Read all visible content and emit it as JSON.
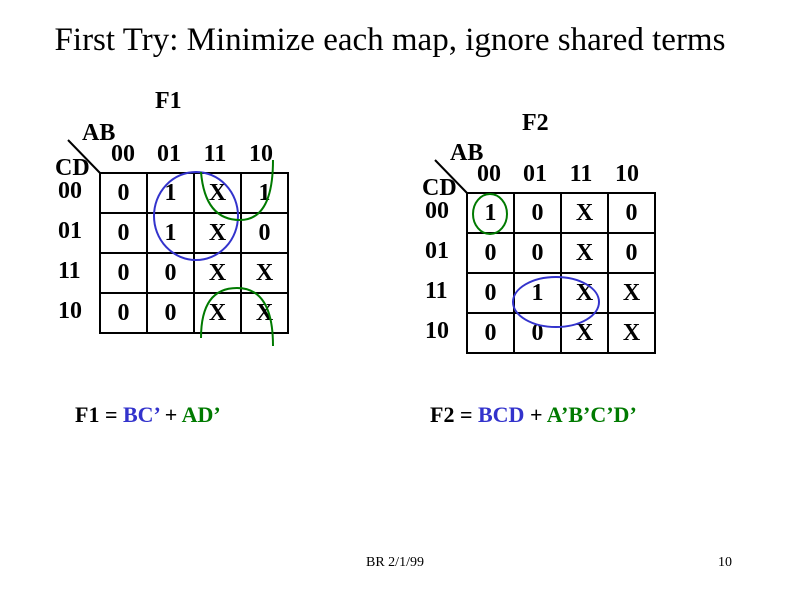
{
  "title": "First Try: Minimize each map, ignore shared terms",
  "colors": {
    "blue": "#3333cc",
    "green": "#007a00"
  },
  "col_codes": [
    "00",
    "01",
    "11",
    "10"
  ],
  "row_codes": [
    "00",
    "01",
    "11",
    "10"
  ],
  "maps": [
    {
      "name": "F1",
      "col_var": "AB",
      "row_var": "CD",
      "cells": [
        [
          "0",
          "1",
          "X",
          "1"
        ],
        [
          "0",
          "1",
          "X",
          "0"
        ],
        [
          "0",
          "0",
          "X",
          "X"
        ],
        [
          "0",
          "0",
          "X",
          "X"
        ]
      ],
      "equation": {
        "lhs": "F1 = ",
        "t1": "BC’",
        "op": " + ",
        "t2": "AD’"
      }
    },
    {
      "name": "F2",
      "col_var": "AB",
      "row_var": "CD",
      "cells": [
        [
          "1",
          "0",
          "X",
          "0"
        ],
        [
          "0",
          "0",
          "X",
          "0"
        ],
        [
          "0",
          "1",
          "X",
          "X"
        ],
        [
          "0",
          "0",
          "X",
          "X"
        ]
      ],
      "equation": {
        "lhs": "F2 = ",
        "t1": "BCD",
        "op": " + ",
        "t2": "A’B’C’D’"
      }
    }
  ],
  "footer": {
    "center": "BR 2/1/99",
    "page": "10"
  }
}
